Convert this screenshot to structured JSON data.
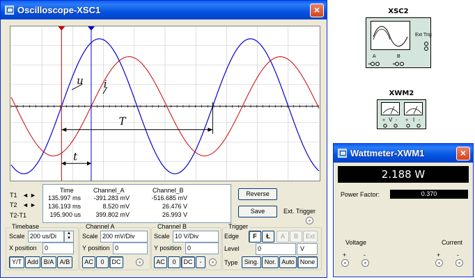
{
  "oscilloscope": {
    "title": "Oscilloscope-XSC1",
    "close": "×",
    "screen": {
      "label_u": "u",
      "label_i": "i",
      "label_T": "T",
      "label_t": "t"
    },
    "t1_label": "T1",
    "t2_label": "T2",
    "t2t1_label": "T2-T1",
    "readout": {
      "headers": [
        "Time",
        "Channel_A",
        "Channel_B"
      ],
      "rows": [
        [
          "135.997 ms",
          "-391.283 mV",
          "-516.685 mV"
        ],
        [
          "136.193 ms",
          "8.520 mV",
          "26.476 V"
        ],
        [
          "195.900 us",
          "399.802 mV",
          "26.993 V"
        ]
      ]
    },
    "reverse_label": "Reverse",
    "save_label": "Save",
    "ext_trigger_label": "Ext. Trigger",
    "timebase": {
      "title": "Timebase",
      "scale_label": "Scale",
      "scale_value": "200 us/Di",
      "xpos_label": "X position",
      "xpos_value": "0",
      "buttons": [
        "Y/T",
        "Add",
        "B/A",
        "A/B"
      ]
    },
    "channel_a": {
      "title": "Channel A",
      "scale_label": "Scale",
      "scale_value": "200 mV/Div",
      "ypos_label": "Y position",
      "ypos_value": "0",
      "buttons": [
        "AC",
        "0",
        "DC"
      ]
    },
    "channel_b": {
      "title": "Channel B",
      "scale_label": "Scale",
      "scale_value": "10  V/Div",
      "ypos_label": "Y position",
      "ypos_value": "0",
      "buttons": [
        "AC",
        "0",
        "DC",
        "-"
      ]
    },
    "trigger": {
      "title": "Trigger",
      "edge_label": "Edge",
      "edge_buttons": [
        "F",
        "Ł",
        "A",
        "B",
        "Ext"
      ],
      "level_label": "Level",
      "level_value": "0",
      "level_unit": "V",
      "type_label": "Type",
      "type_buttons": [
        "Sing.",
        "Nor.",
        "Auto",
        "None"
      ]
    }
  },
  "xsc2": {
    "title": "XSC2",
    "ext_trig": "Ext Trig",
    "a": "A",
    "b": "B"
  },
  "xwm2": {
    "title": "XWM2",
    "v_label": "V",
    "i_label": "I"
  },
  "wattmeter": {
    "title": "Wattmeter-XWM1",
    "close": "×",
    "display": "2.188 W",
    "pf_label": "Power Factor:",
    "pf_value": "0.370",
    "voltage_label": "Voltage",
    "current_label": "Current"
  },
  "colors": {
    "channel_a": "#0000cc",
    "channel_b": "#cc0000",
    "cursor1": "#cc0000",
    "cursor2": "#0000cc",
    "screen_bg": "#ffffff",
    "grid": "#c8c8c8"
  }
}
